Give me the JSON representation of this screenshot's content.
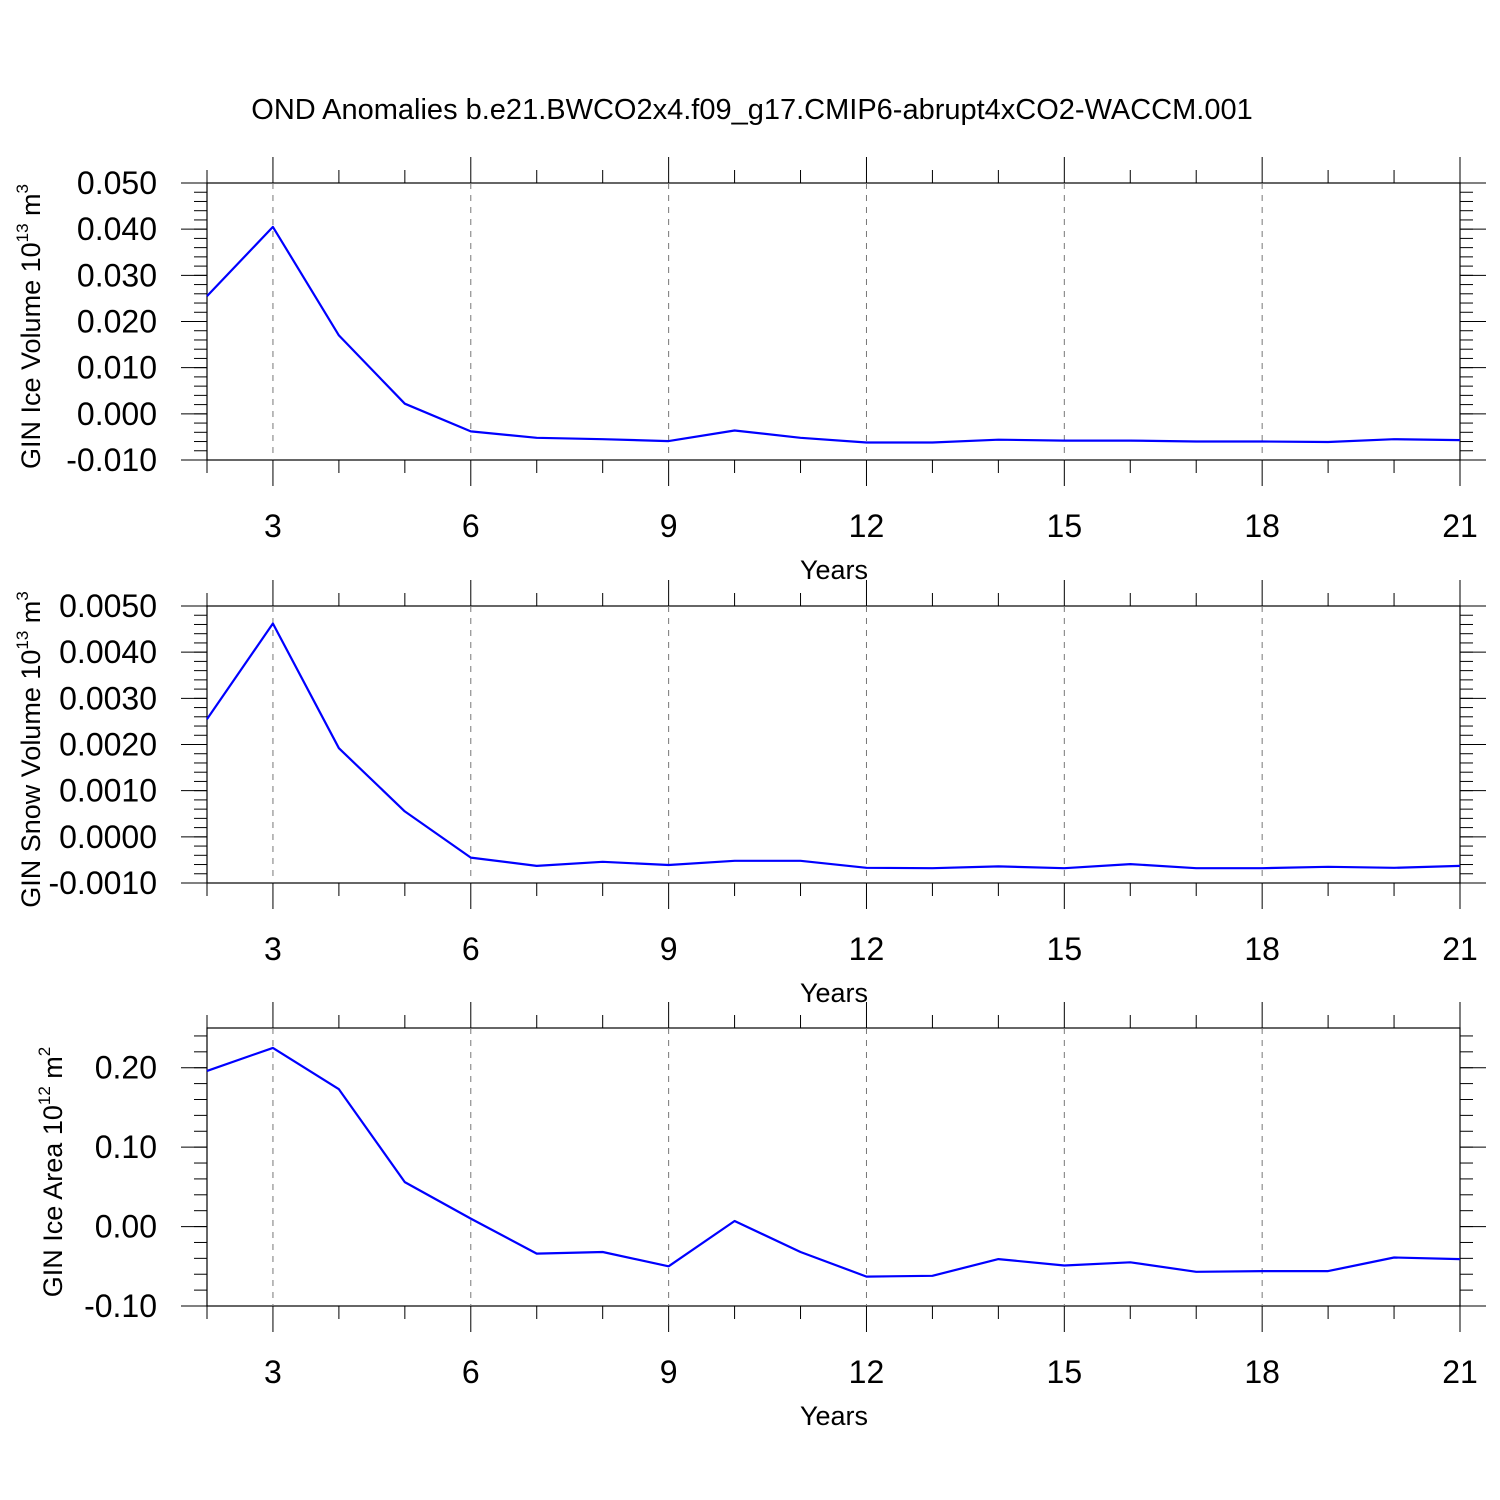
{
  "title": "OND Anomalies b.e21.BWCO2x4.f09_g17.CMIP6-abrupt4xCO2-WACCM.001",
  "colors": {
    "series": "#0000ff",
    "frame": "#000000",
    "grid": "#777777"
  },
  "chart_data": [
    {
      "type": "line",
      "ylabel": "GIN Ice Volume 10",
      "ylabel_exp": "13",
      "ylabel_unit": "m",
      "ylabel_unit_exp": "3",
      "xlabel": "Years",
      "xlim": [
        2,
        21
      ],
      "ylim": [
        -0.01,
        0.05
      ],
      "x_ticks": [
        "3",
        "6",
        "9",
        "12",
        "15",
        "18",
        "21"
      ],
      "y_ticks": [
        "0.050",
        "0.040",
        "0.030",
        "0.020",
        "0.010",
        "0.000",
        "-0.010"
      ],
      "x": [
        2,
        3,
        4,
        5,
        6,
        7,
        8,
        9,
        10,
        11,
        12,
        13,
        14,
        15,
        16,
        17,
        18,
        19,
        20,
        21
      ],
      "values": [
        0.0255,
        0.0405,
        0.017,
        0.0022,
        -0.0038,
        -0.0052,
        -0.0055,
        -0.0059,
        -0.0036,
        -0.0052,
        -0.0062,
        -0.0062,
        -0.0056,
        -0.0058,
        -0.0058,
        -0.006,
        -0.006,
        -0.0061,
        -0.0055,
        -0.0057
      ],
      "grid": "vertical-dashed"
    },
    {
      "type": "line",
      "ylabel": "GIN Snow Volume 10",
      "ylabel_exp": "13",
      "ylabel_unit": "m",
      "ylabel_unit_exp": "3",
      "xlabel": "Years",
      "xlim": [
        2,
        21
      ],
      "ylim": [
        -0.001,
        0.005
      ],
      "x_ticks": [
        "3",
        "6",
        "9",
        "12",
        "15",
        "18",
        "21"
      ],
      "y_ticks": [
        "0.0050",
        "0.0040",
        "0.0030",
        "0.0020",
        "0.0010",
        "0.0000",
        "-0.0010"
      ],
      "x": [
        2,
        3,
        4,
        5,
        6,
        7,
        8,
        9,
        10,
        11,
        12,
        13,
        14,
        15,
        16,
        17,
        18,
        19,
        20,
        21
      ],
      "values": [
        0.00255,
        0.00462,
        0.00192,
        0.00055,
        -0.00045,
        -0.00063,
        -0.00054,
        -0.00061,
        -0.00052,
        -0.00052,
        -0.00067,
        -0.00068,
        -0.00064,
        -0.00068,
        -0.00059,
        -0.00068,
        -0.00068,
        -0.00065,
        -0.00067,
        -0.00063
      ],
      "grid": "vertical-dashed"
    },
    {
      "type": "line",
      "ylabel": "GIN Ice Area 10",
      "ylabel_exp": "12",
      "ylabel_unit": "m",
      "ylabel_unit_exp": "2",
      "xlabel": "Years",
      "xlim": [
        2,
        21
      ],
      "ylim": [
        -0.1,
        0.25
      ],
      "x_ticks": [
        "3",
        "6",
        "9",
        "12",
        "15",
        "18",
        "21"
      ],
      "y_ticks": [
        "0.20",
        "0.10",
        "0.00",
        "-0.10"
      ],
      "y_tick_values": [
        0.2,
        0.1,
        0.0,
        -0.1
      ],
      "x": [
        2,
        3,
        4,
        5,
        6,
        7,
        8,
        9,
        10,
        11,
        12,
        13,
        14,
        15,
        16,
        17,
        18,
        19,
        20,
        21
      ],
      "values": [
        0.196,
        0.225,
        0.173,
        0.056,
        0.01,
        -0.034,
        -0.032,
        -0.05,
        0.007,
        -0.032,
        -0.063,
        -0.062,
        -0.041,
        -0.049,
        -0.045,
        -0.057,
        -0.056,
        -0.056,
        -0.039,
        -0.041
      ],
      "grid": "vertical-dashed"
    }
  ]
}
